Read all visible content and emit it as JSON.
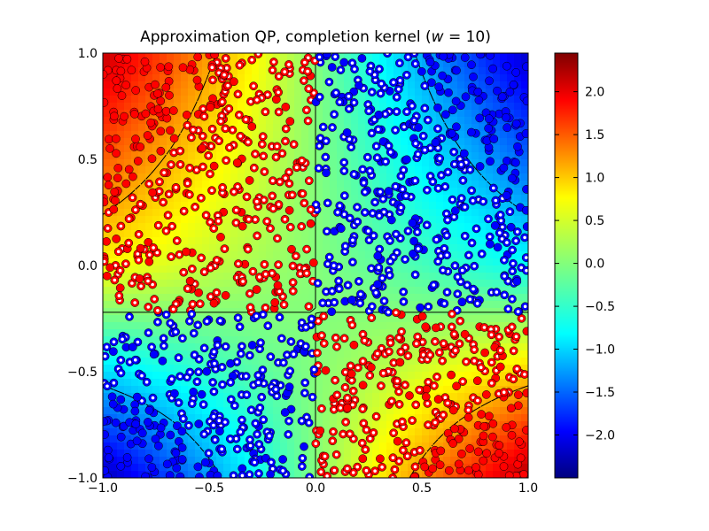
{
  "chart_data": {
    "type": "scatter",
    "title": "Approximation QP, completion kernel (",
    "title_math_var": "w",
    "title_suffix": " = 10)",
    "xlabel": "",
    "ylabel": "",
    "xlim": [
      -1.0,
      1.0
    ],
    "ylim": [
      -1.0,
      1.0
    ],
    "x_ticks": [
      "−1.0",
      "−0.5",
      "0.0",
      "0.5",
      "1.0"
    ],
    "y_ticks": [
      "−1.0",
      "−0.5",
      "0.0",
      "0.5",
      "1.0"
    ],
    "grid": false,
    "background": "heatmap of decision function (jet colormap)",
    "colorbar": {
      "range": [
        -2.5,
        2.45
      ],
      "ticks": [
        "−2.0",
        "−1.5",
        "−1.0",
        "−0.5",
        "0.0",
        "0.5",
        "1.0",
        "1.5",
        "2.0"
      ],
      "colormap": "jet"
    },
    "contours": [
      {
        "level": 0,
        "style": "solid"
      },
      {
        "level": 1,
        "style": "dashed"
      },
      {
        "level": -1,
        "style": "dashed"
      }
    ],
    "series": [
      {
        "class": "+1",
        "color": "#ff0000",
        "marker": "circle"
      },
      {
        "class": "-1",
        "color": "#0000ff",
        "marker": "circle"
      }
    ],
    "support_vectors": "hollow-center circles (white dot)",
    "points_estimate": 1500,
    "note": "Points sampled uniformly in [-1,1]^2, labeled by sign of decision function"
  }
}
